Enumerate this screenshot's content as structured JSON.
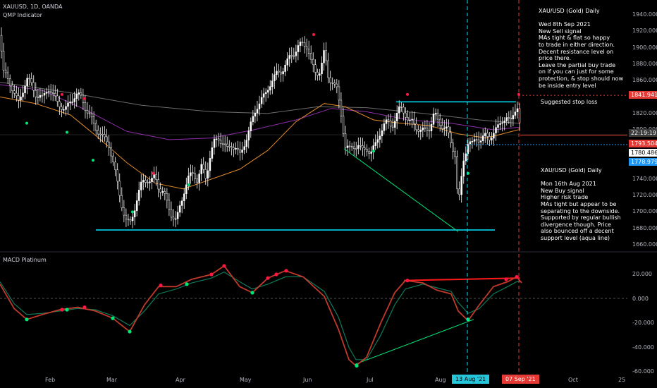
{
  "header": {
    "symbol_line": "XAUUSD, 1D, OANDA",
    "indicator": "QMP Indicator",
    "macd_label": "MACD Platinum"
  },
  "notes": {
    "top": "XAU/USD (Gold) Daily\n\nWed 8th Sep 2021\nNew Sell signal\nMAs tight & flat so happy\nto trade in either direction.\nDecent resistance level on\nprice there.\nLeave the partial buy trade\non if you can just for some\nprotection, & stop should now\nbe inside entry level",
    "stop": "Suggested stop loss",
    "bottom": "XAU/USD (Gold) Daily\n\nMon 16th Aug 2021\nNew Buy signal\nHigher risk trade\nMAs tight but appear to be\nseparating to the downside.\nSupported by regular bullish\ndivergence though. Price\nalso bounced off a decent\nsupport level (aqua line)"
  },
  "price_axis": {
    "ticks": [
      "1940.000",
      "1920.000",
      "1900.000",
      "1880.000",
      "1860.000",
      "1840.000",
      "1820.000",
      "1800.000",
      "1760.000",
      "1740.000",
      "1720.000",
      "1700.000",
      "1680.000",
      "1660.000"
    ],
    "tags": {
      "stop": "1841.941",
      "time": "22:19:19",
      "sell": "1793.504",
      "level2": "1780.486",
      "buy": "1778.979"
    }
  },
  "macd_axis": {
    "ticks": [
      "20.000",
      "0.000",
      "-20.000",
      "-40.000",
      "-60.000"
    ]
  },
  "time_axis": {
    "labels": [
      "Feb",
      "Mar",
      "Apr",
      "May",
      "Jun",
      "Jul",
      "Aug",
      "Oct",
      "25"
    ],
    "date_tags": {
      "buy": "13 Aug '21",
      "sell": "07 Sep '21"
    }
  },
  "colors": {
    "up": "#ffffff",
    "aqua": "#00e5ff",
    "buy_signal": "#00e676",
    "sell_signal": "#ff1744",
    "red_line": "#ff1a1a",
    "macd_red": "#c0392b",
    "macd_green": "#0f7a5a",
    "ma_orange": "#e08a2a",
    "ma_purple": "#8e2fa8",
    "ma_grey": "#6b6b6b",
    "tag_blue": "#2196f3",
    "tag_red": "#e53935"
  },
  "chart_data": {
    "type": "candlestick",
    "symbol": "XAUUSD",
    "timeframe": "1D",
    "price_ylim": [
      1650,
      1950
    ],
    "macd_ylim": [
      -60,
      30
    ],
    "price_path": [
      [
        0,
        1915
      ],
      [
        5,
        1870
      ],
      [
        14,
        1858
      ],
      [
        20,
        1845
      ],
      [
        26,
        1832
      ],
      [
        33,
        1850
      ],
      [
        38,
        1862
      ],
      [
        45,
        1855
      ],
      [
        52,
        1842
      ],
      [
        60,
        1838
      ],
      [
        68,
        1852
      ],
      [
        76,
        1840
      ],
      [
        84,
        1832
      ],
      [
        92,
        1822
      ],
      [
        100,
        1836
      ],
      [
        108,
        1842
      ],
      [
        116,
        1840
      ],
      [
        122,
        1825
      ],
      [
        130,
        1812
      ],
      [
        138,
        1800
      ],
      [
        146,
        1790
      ],
      [
        154,
        1784
      ],
      [
        160,
        1762
      ],
      [
        166,
        1738
      ],
      [
        172,
        1712
      ],
      [
        178,
        1690
      ],
      [
        184,
        1685
      ],
      [
        190,
        1702
      ],
      [
        196,
        1720
      ],
      [
        202,
        1738
      ],
      [
        208,
        1740
      ],
      [
        214,
        1735
      ],
      [
        220,
        1745
      ],
      [
        226,
        1728
      ],
      [
        232,
        1722
      ],
      [
        238,
        1710
      ],
      [
        244,
        1695
      ],
      [
        250,
        1688
      ],
      [
        256,
        1710
      ],
      [
        262,
        1728
      ],
      [
        268,
        1742
      ],
      [
        274,
        1748
      ],
      [
        280,
        1738
      ],
      [
        286,
        1755
      ],
      [
        292,
        1742
      ],
      [
        298,
        1768
      ],
      [
        304,
        1785
      ],
      [
        310,
        1790
      ],
      [
        316,
        1784
      ],
      [
        322,
        1776
      ],
      [
        328,
        1782
      ],
      [
        334,
        1778
      ],
      [
        340,
        1768
      ],
      [
        346,
        1782
      ],
      [
        352,
        1795
      ],
      [
        358,
        1812
      ],
      [
        364,
        1828
      ],
      [
        370,
        1836
      ],
      [
        376,
        1842
      ],
      [
        382,
        1855
      ],
      [
        388,
        1862
      ],
      [
        394,
        1870
      ],
      [
        400,
        1872
      ],
      [
        406,
        1880
      ],
      [
        412,
        1890
      ],
      [
        418,
        1895
      ],
      [
        424,
        1902
      ],
      [
        430,
        1905
      ],
      [
        436,
        1902
      ],
      [
        442,
        1880
      ],
      [
        448,
        1868
      ],
      [
        454,
        1872
      ],
      [
        460,
        1895
      ],
      [
        466,
        1862
      ],
      [
        472,
        1860
      ],
      [
        478,
        1848
      ],
      [
        484,
        1818
      ],
      [
        490,
        1780
      ],
      [
        496,
        1776
      ],
      [
        502,
        1780
      ],
      [
        508,
        1782
      ],
      [
        514,
        1774
      ],
      [
        520,
        1778
      ],
      [
        526,
        1772
      ],
      [
        532,
        1780
      ],
      [
        538,
        1795
      ],
      [
        544,
        1805
      ],
      [
        550,
        1810
      ],
      [
        556,
        1805
      ],
      [
        562,
        1815
      ],
      [
        568,
        1828
      ],
      [
        574,
        1822
      ],
      [
        580,
        1808
      ],
      [
        586,
        1810
      ],
      [
        592,
        1802
      ],
      [
        598,
        1798
      ],
      [
        604,
        1800
      ],
      [
        610,
        1803
      ],
      [
        616,
        1820
      ],
      [
        622,
        1810
      ],
      [
        628,
        1805
      ],
      [
        634,
        1800
      ],
      [
        640,
        1782
      ],
      [
        646,
        1770
      ],
      [
        650,
        1705
      ],
      [
        654,
        1735
      ],
      [
        658,
        1765
      ],
      [
        664,
        1786
      ],
      [
        670,
        1782
      ],
      [
        676,
        1790
      ],
      [
        682,
        1788
      ],
      [
        688,
        1792
      ],
      [
        694,
        1790
      ],
      [
        700,
        1796
      ],
      [
        706,
        1802
      ],
      [
        712,
        1812
      ],
      [
        718,
        1815
      ],
      [
        724,
        1808
      ],
      [
        730,
        1825
      ],
      [
        734,
        1828
      ],
      [
        738,
        1800
      ]
    ],
    "ma_fast": [
      [
        0,
        1840
      ],
      [
        50,
        1832
      ],
      [
        100,
        1818
      ],
      [
        140,
        1790
      ],
      [
        180,
        1760
      ],
      [
        220,
        1735
      ],
      [
        260,
        1728
      ],
      [
        300,
        1740
      ],
      [
        340,
        1752
      ],
      [
        380,
        1775
      ],
      [
        420,
        1810
      ],
      [
        460,
        1832
      ],
      [
        490,
        1828
      ],
      [
        530,
        1812
      ],
      [
        570,
        1808
      ],
      [
        610,
        1805
      ],
      [
        650,
        1795
      ],
      [
        690,
        1790
      ],
      [
        735,
        1800
      ]
    ],
    "ma_mid": [
      [
        0,
        1855
      ],
      [
        60,
        1848
      ],
      [
        120,
        1825
      ],
      [
        180,
        1798
      ],
      [
        240,
        1788
      ],
      [
        300,
        1790
      ],
      [
        360,
        1800
      ],
      [
        420,
        1812
      ],
      [
        470,
        1826
      ],
      [
        520,
        1822
      ],
      [
        580,
        1812
      ],
      [
        640,
        1808
      ],
      [
        700,
        1800
      ],
      [
        735,
        1803
      ]
    ],
    "ma_slow": [
      [
        0,
        1858
      ],
      [
        100,
        1845
      ],
      [
        200,
        1830
      ],
      [
        300,
        1822
      ],
      [
        380,
        1820
      ],
      [
        450,
        1828
      ],
      [
        520,
        1827
      ],
      [
        600,
        1820
      ],
      [
        680,
        1812
      ],
      [
        735,
        1808
      ]
    ],
    "macd_series": [
      {
        "name": "macd",
        "points": [
          [
            0,
            12
          ],
          [
            20,
            -8
          ],
          [
            38,
            -17
          ],
          [
            60,
            -13
          ],
          [
            85,
            -9
          ],
          [
            110,
            -7
          ],
          [
            135,
            -10
          ],
          [
            160,
            -16
          ],
          [
            184,
            -27
          ],
          [
            205,
            -5
          ],
          [
            225,
            10
          ],
          [
            250,
            10
          ],
          [
            272,
            16
          ],
          [
            300,
            20
          ],
          [
            318,
            27
          ],
          [
            340,
            10
          ],
          [
            358,
            5
          ],
          [
            380,
            17
          ],
          [
            405,
            23
          ],
          [
            430,
            18
          ],
          [
            460,
            2
          ],
          [
            480,
            -25
          ],
          [
            495,
            -50
          ],
          [
            505,
            -55
          ],
          [
            520,
            -48
          ],
          [
            540,
            -20
          ],
          [
            560,
            5
          ],
          [
            575,
            15
          ],
          [
            600,
            13
          ],
          [
            620,
            7
          ],
          [
            640,
            4
          ],
          [
            650,
            -10
          ],
          [
            664,
            -18
          ],
          [
            680,
            -5
          ],
          [
            700,
            10
          ],
          [
            720,
            14
          ],
          [
            733,
            18
          ],
          [
            740,
            13
          ]
        ]
      },
      {
        "name": "signal",
        "points": [
          [
            0,
            14
          ],
          [
            20,
            -4
          ],
          [
            38,
            -13
          ],
          [
            60,
            -12
          ],
          [
            85,
            -10
          ],
          [
            110,
            -8
          ],
          [
            135,
            -9
          ],
          [
            160,
            -14
          ],
          [
            184,
            -22
          ],
          [
            205,
            -10
          ],
          [
            225,
            4
          ],
          [
            250,
            8
          ],
          [
            272,
            13
          ],
          [
            300,
            17
          ],
          [
            318,
            22
          ],
          [
            340,
            14
          ],
          [
            358,
            8
          ],
          [
            380,
            12
          ],
          [
            405,
            18
          ],
          [
            430,
            18
          ],
          [
            460,
            6
          ],
          [
            480,
            -15
          ],
          [
            495,
            -40
          ],
          [
            505,
            -50
          ],
          [
            520,
            -50
          ],
          [
            540,
            -30
          ],
          [
            560,
            -5
          ],
          [
            575,
            8
          ],
          [
            600,
            12
          ],
          [
            620,
            9
          ],
          [
            640,
            6
          ],
          [
            650,
            -3
          ],
          [
            664,
            -12
          ],
          [
            680,
            -8
          ],
          [
            700,
            4
          ],
          [
            720,
            10
          ],
          [
            733,
            14
          ],
          [
            740,
            14
          ]
        ]
      }
    ]
  }
}
